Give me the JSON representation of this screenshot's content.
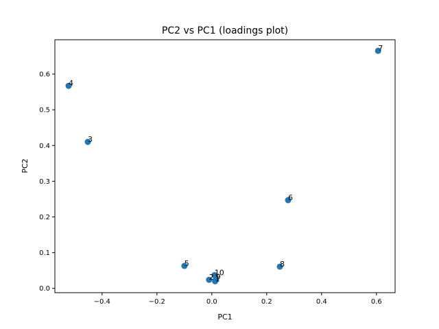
{
  "chart_data": {
    "type": "scatter",
    "title": "PC2 vs PC1 (loadings plot)",
    "xlabel": "PC1",
    "ylabel": "PC2",
    "xlim": [
      -0.572,
      0.668
    ],
    "ylim": [
      -0.012,
      0.696
    ],
    "xticks": [
      -0.4,
      -0.2,
      0.0,
      0.2,
      0.4,
      0.6
    ],
    "xtick_labels": [
      "−0.4",
      "−0.2",
      "0.0",
      "0.2",
      "0.4",
      "0.6"
    ],
    "yticks": [
      0.0,
      0.1,
      0.2,
      0.3,
      0.4,
      0.5,
      0.6
    ],
    "ytick_labels": [
      "0.0",
      "0.1",
      "0.2",
      "0.3",
      "0.4",
      "0.5",
      "0.6"
    ],
    "grid": false,
    "marker_color": "#1f77b4",
    "points": [
      {
        "label": "1",
        "x": 0.012,
        "y": 0.02
      },
      {
        "label": "2",
        "x": -0.01,
        "y": 0.024
      },
      {
        "label": "3",
        "x": -0.452,
        "y": 0.41
      },
      {
        "label": "4",
        "x": -0.522,
        "y": 0.567
      },
      {
        "label": "5",
        "x": -0.1,
        "y": 0.063
      },
      {
        "label": "6",
        "x": 0.278,
        "y": 0.247
      },
      {
        "label": "7",
        "x": 0.606,
        "y": 0.665
      },
      {
        "label": "8",
        "x": 0.248,
        "y": 0.061
      },
      {
        "label": "9",
        "x": 0.015,
        "y": 0.025
      },
      {
        "label": "10",
        "x": 0.01,
        "y": 0.037
      }
    ]
  }
}
